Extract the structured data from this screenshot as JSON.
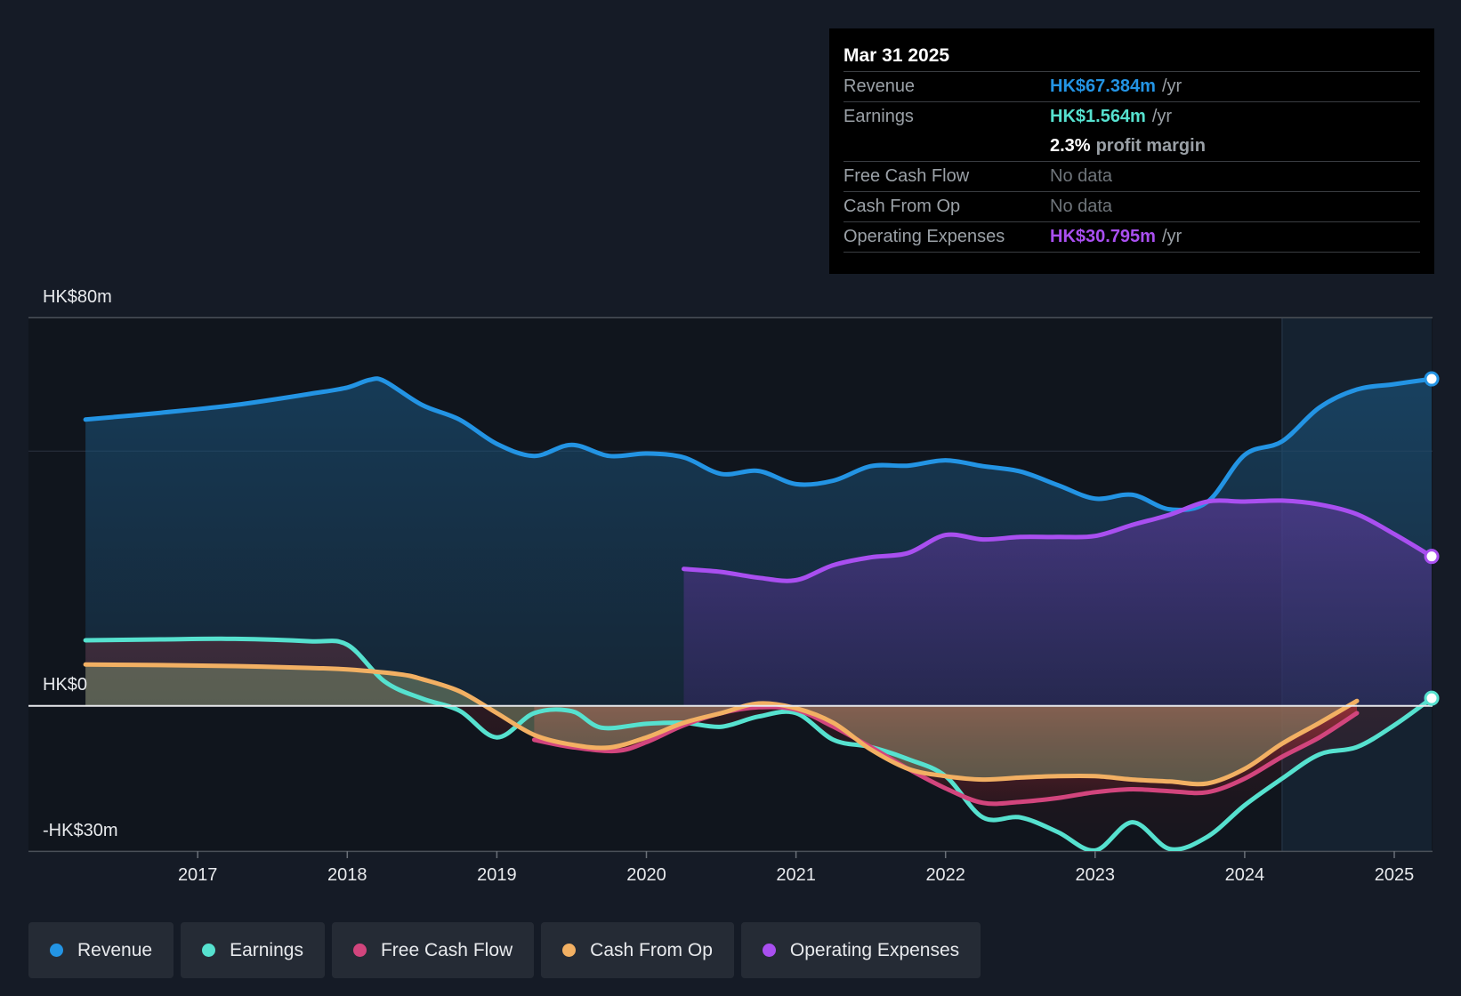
{
  "tooltip": {
    "date": "Mar 31 2025",
    "revenue": {
      "label": "Revenue",
      "value": "HK$67.384m",
      "unit": "/yr"
    },
    "earnings": {
      "label": "Earnings",
      "value": "HK$1.564m",
      "unit": "/yr"
    },
    "margin": {
      "value": "2.3%",
      "text": "profit margin"
    },
    "fcf": {
      "label": "Free Cash Flow",
      "value": "No data"
    },
    "cfo": {
      "label": "Cash From Op",
      "value": "No data"
    },
    "opex": {
      "label": "Operating Expenses",
      "value": "HK$30.795m",
      "unit": "/yr"
    }
  },
  "legend": [
    {
      "label": "Revenue",
      "color": "#2394e4"
    },
    {
      "label": "Earnings",
      "color": "#56e1cf"
    },
    {
      "label": "Free Cash Flow",
      "color": "#d2457d"
    },
    {
      "label": "Cash From Op",
      "color": "#f2b063"
    },
    {
      "label": "Operating Expenses",
      "color": "#a94ff0"
    }
  ],
  "chart_data": {
    "type": "area",
    "y_unit": "HK$m",
    "ylim": [
      -30,
      80
    ],
    "xlim": [
      2015.9,
      2025.25
    ],
    "y_axis_labels": [
      "HK$80m",
      "HK$0",
      "-HK$30m"
    ],
    "x_ticks": [
      "2017",
      "2018",
      "2019",
      "2020",
      "2021",
      "2022",
      "2023",
      "2024",
      "2025"
    ],
    "x_tick_values": [
      2017,
      2018,
      2019,
      2020,
      2021,
      2022,
      2023,
      2024,
      2025
    ],
    "forecast_start": 2024.25,
    "series": [
      {
        "name": "Revenue",
        "color": "#2394e4",
        "fill": true,
        "points": [
          [
            2016.25,
            59.0
          ],
          [
            2016.75,
            60.4
          ],
          [
            2017.25,
            62.0
          ],
          [
            2017.75,
            64.3
          ],
          [
            2018.0,
            65.6
          ],
          [
            2018.15,
            67.2
          ],
          [
            2018.25,
            66.9
          ],
          [
            2018.5,
            62.0
          ],
          [
            2018.75,
            59.0
          ],
          [
            2019.0,
            54.0
          ],
          [
            2019.25,
            51.5
          ],
          [
            2019.5,
            53.8
          ],
          [
            2019.75,
            51.5
          ],
          [
            2020.0,
            52.0
          ],
          [
            2020.25,
            51.2
          ],
          [
            2020.5,
            47.8
          ],
          [
            2020.75,
            48.4
          ],
          [
            2021.0,
            45.7
          ],
          [
            2021.25,
            46.4
          ],
          [
            2021.5,
            49.4
          ],
          [
            2021.75,
            49.5
          ],
          [
            2022.0,
            50.6
          ],
          [
            2022.25,
            49.4
          ],
          [
            2022.5,
            48.3
          ],
          [
            2022.75,
            45.5
          ],
          [
            2023.0,
            42.7
          ],
          [
            2023.25,
            43.5
          ],
          [
            2023.5,
            40.5
          ],
          [
            2023.75,
            42.0
          ],
          [
            2024.0,
            51.7
          ],
          [
            2024.25,
            54.5
          ],
          [
            2024.5,
            61.5
          ],
          [
            2024.75,
            65.2
          ],
          [
            2025.0,
            66.3
          ],
          [
            2025.25,
            67.384
          ]
        ]
      },
      {
        "name": "Operating Expenses",
        "color": "#a94ff0",
        "fill": true,
        "points": [
          [
            2020.25,
            28.2
          ],
          [
            2020.5,
            27.6
          ],
          [
            2020.75,
            26.4
          ],
          [
            2021.0,
            25.9
          ],
          [
            2021.25,
            29.0
          ],
          [
            2021.5,
            30.6
          ],
          [
            2021.75,
            31.5
          ],
          [
            2022.0,
            35.2
          ],
          [
            2022.25,
            34.3
          ],
          [
            2022.5,
            34.8
          ],
          [
            2022.75,
            34.8
          ],
          [
            2023.0,
            35.0
          ],
          [
            2023.25,
            37.3
          ],
          [
            2023.5,
            39.4
          ],
          [
            2023.75,
            42.1
          ],
          [
            2024.0,
            42.1
          ],
          [
            2024.25,
            42.3
          ],
          [
            2024.5,
            41.5
          ],
          [
            2024.75,
            39.5
          ],
          [
            2025.0,
            35.4
          ],
          [
            2025.25,
            30.795
          ]
        ]
      },
      {
        "name": "Earnings",
        "color": "#56e1cf",
        "fill": true,
        "points": [
          [
            2016.25,
            13.5
          ],
          [
            2016.75,
            13.7
          ],
          [
            2017.25,
            13.8
          ],
          [
            2017.75,
            13.3
          ],
          [
            2018.0,
            12.6
          ],
          [
            2018.25,
            5.0
          ],
          [
            2018.5,
            1.5
          ],
          [
            2018.75,
            -1.0
          ],
          [
            2019.0,
            -6.5
          ],
          [
            2019.25,
            -1.5
          ],
          [
            2019.5,
            -1.1
          ],
          [
            2019.7,
            -4.5
          ],
          [
            2020.0,
            -3.7
          ],
          [
            2020.25,
            -3.5
          ],
          [
            2020.5,
            -4.3
          ],
          [
            2020.75,
            -2.2
          ],
          [
            2021.0,
            -1.5
          ],
          [
            2021.25,
            -7.0
          ],
          [
            2021.5,
            -8.5
          ],
          [
            2021.75,
            -11.0
          ],
          [
            2022.0,
            -14.5
          ],
          [
            2022.25,
            -23.0
          ],
          [
            2022.5,
            -23.0
          ],
          [
            2022.75,
            -26.0
          ],
          [
            2023.0,
            -29.8
          ],
          [
            2023.25,
            -24.0
          ],
          [
            2023.5,
            -29.5
          ],
          [
            2023.75,
            -27.0
          ],
          [
            2024.0,
            -20.5
          ],
          [
            2024.25,
            -15.0
          ],
          [
            2024.5,
            -10.0
          ],
          [
            2024.75,
            -8.5
          ],
          [
            2025.0,
            -4.0
          ],
          [
            2025.25,
            1.564
          ]
        ]
      },
      {
        "name": "Free Cash Flow",
        "color": "#d2457d",
        "fill": true,
        "points": [
          [
            2019.25,
            -7.0
          ],
          [
            2019.5,
            -8.5
          ],
          [
            2019.8,
            -9.3
          ],
          [
            2020.0,
            -7.5
          ],
          [
            2020.25,
            -4.0
          ],
          [
            2020.5,
            -1.5
          ],
          [
            2020.75,
            -0.3
          ],
          [
            2021.0,
            -0.8
          ],
          [
            2021.25,
            -4.3
          ],
          [
            2021.5,
            -8.5
          ],
          [
            2021.75,
            -13.0
          ],
          [
            2022.0,
            -17.0
          ],
          [
            2022.25,
            -20.0
          ],
          [
            2022.5,
            -19.8
          ],
          [
            2022.75,
            -19.0
          ],
          [
            2023.0,
            -17.8
          ],
          [
            2023.25,
            -17.2
          ],
          [
            2023.5,
            -17.6
          ],
          [
            2023.75,
            -17.8
          ],
          [
            2024.0,
            -15.0
          ],
          [
            2024.25,
            -10.5
          ],
          [
            2024.5,
            -6.5
          ],
          [
            2024.75,
            -1.5
          ]
        ]
      },
      {
        "name": "Cash From Op",
        "color": "#f2b063",
        "fill": true,
        "points": [
          [
            2016.25,
            8.5
          ],
          [
            2016.75,
            8.4
          ],
          [
            2017.25,
            8.2
          ],
          [
            2017.75,
            7.8
          ],
          [
            2018.0,
            7.5
          ],
          [
            2018.35,
            6.5
          ],
          [
            2018.5,
            5.5
          ],
          [
            2018.75,
            3.0
          ],
          [
            2019.0,
            -1.5
          ],
          [
            2019.25,
            -6.0
          ],
          [
            2019.5,
            -8.0
          ],
          [
            2019.75,
            -8.6
          ],
          [
            2020.0,
            -6.5
          ],
          [
            2020.25,
            -3.5
          ],
          [
            2020.5,
            -1.5
          ],
          [
            2020.75,
            0.5
          ],
          [
            2021.0,
            -0.5
          ],
          [
            2021.25,
            -3.5
          ],
          [
            2021.5,
            -9.0
          ],
          [
            2021.75,
            -13.0
          ],
          [
            2022.0,
            -14.5
          ],
          [
            2022.25,
            -15.2
          ],
          [
            2022.5,
            -14.8
          ],
          [
            2022.75,
            -14.5
          ],
          [
            2023.0,
            -14.5
          ],
          [
            2023.25,
            -15.2
          ],
          [
            2023.5,
            -15.6
          ],
          [
            2023.75,
            -16.0
          ],
          [
            2024.0,
            -13.0
          ],
          [
            2024.25,
            -7.8
          ],
          [
            2024.5,
            -3.5
          ],
          [
            2024.75,
            1.0
          ]
        ]
      }
    ]
  }
}
